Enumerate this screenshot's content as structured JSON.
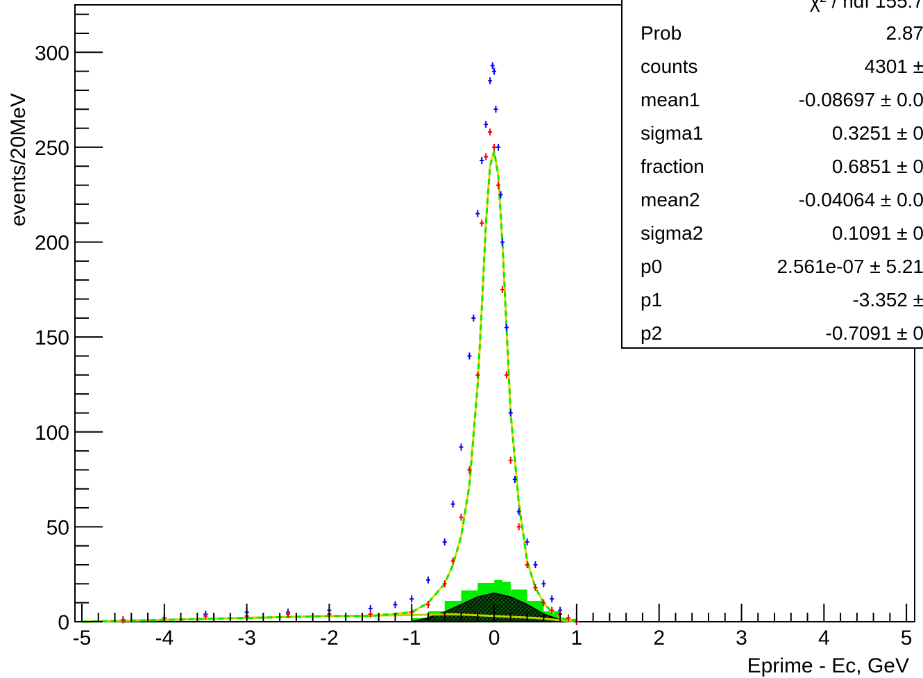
{
  "chart_data": {
    "type": "line",
    "xlabel": "Eprime - Ec, GeV",
    "ylabel": "events/20MeV",
    "xlim": [
      -5,
      5.1
    ],
    "ylim": [
      0,
      325
    ],
    "x_ticks": [
      "-5",
      "-4",
      "-3",
      "-2",
      "-1",
      "0",
      "1",
      "2",
      "3",
      "4",
      "5"
    ],
    "y_ticks": [
      "0",
      "50",
      "100",
      "150",
      "200",
      "250",
      "300"
    ],
    "x_tick_values": [
      -5,
      -4,
      -3,
      -2,
      -1,
      0,
      1,
      2,
      3,
      4,
      5
    ],
    "y_tick_values": [
      0,
      50,
      100,
      150,
      200,
      250,
      300
    ],
    "series": [
      {
        "color": "#0000ee",
        "style": "points",
        "x": [
          -4.5,
          -4.0,
          -3.5,
          -3.0,
          -2.5,
          -2.0,
          -1.5,
          -1.2,
          -1.0,
          -0.8,
          -0.6,
          -0.5,
          -0.4,
          -0.3,
          -0.25,
          -0.2,
          -0.15,
          -0.1,
          -0.05,
          -0.02,
          0.0,
          0.02,
          0.05,
          0.08,
          0.1,
          0.15,
          0.2,
          0.25,
          0.3,
          0.4,
          0.5,
          0.6,
          0.7,
          0.8,
          0.9,
          1.0
        ],
        "y": [
          1,
          2,
          4,
          5,
          5,
          6,
          7,
          9,
          12,
          22,
          42,
          62,
          92,
          140,
          160,
          215,
          243,
          262,
          285,
          293,
          290,
          270,
          250,
          225,
          200,
          155,
          110,
          75,
          58,
          42,
          30,
          20,
          12,
          6,
          2,
          0
        ]
      },
      {
        "color": "#ee0000",
        "style": "points",
        "x": [
          -4.5,
          -4.0,
          -3.5,
          -3.0,
          -2.5,
          -2.0,
          -1.5,
          -1.0,
          -0.8,
          -0.6,
          -0.5,
          -0.4,
          -0.3,
          -0.2,
          -0.15,
          -0.1,
          -0.05,
          0.0,
          0.05,
          0.1,
          0.15,
          0.2,
          0.3,
          0.4,
          0.5,
          0.6,
          0.7,
          0.8,
          0.9,
          1.0
        ],
        "y": [
          1,
          2,
          3,
          3,
          4,
          4,
          4,
          5,
          9,
          20,
          32,
          55,
          80,
          130,
          210,
          245,
          258,
          250,
          230,
          175,
          130,
          85,
          50,
          30,
          18,
          10,
          6,
          4,
          2,
          0
        ]
      },
      {
        "color": "#00ee00",
        "style": "dashed",
        "x": [
          -5.0,
          -4.0,
          -3.0,
          -2.0,
          -1.5,
          -1.0,
          -0.8,
          -0.6,
          -0.5,
          -0.4,
          -0.3,
          -0.2,
          -0.15,
          -0.1,
          -0.05,
          0.0,
          0.05,
          0.1,
          0.15,
          0.2,
          0.3,
          0.4,
          0.5,
          0.6,
          0.7,
          0.8,
          0.9,
          1.0
        ],
        "y": [
          0,
          1,
          2,
          3,
          3,
          5,
          10,
          20,
          30,
          45,
          72,
          125,
          165,
          210,
          240,
          248,
          235,
          200,
          155,
          110,
          62,
          32,
          18,
          10,
          5,
          2,
          1,
          0
        ]
      },
      {
        "color": "#ffcc00",
        "style": "line",
        "x": [
          -5.0,
          -4.0,
          -3.0,
          -2.0,
          -1.5,
          -1.0,
          -0.8,
          -0.6,
          -0.5,
          -0.4,
          -0.3,
          -0.2,
          -0.15,
          -0.1,
          -0.05,
          0.0,
          0.05,
          0.1,
          0.15,
          0.2,
          0.3,
          0.4,
          0.5,
          0.6,
          0.7,
          0.8,
          0.9,
          1.0
        ],
        "y": [
          0,
          1,
          2,
          3,
          3,
          5,
          10,
          20,
          30,
          45,
          72,
          125,
          165,
          210,
          240,
          248,
          235,
          200,
          155,
          110,
          62,
          32,
          18,
          10,
          5,
          2,
          1,
          0
        ]
      },
      {
        "color": "#00ee00",
        "style": "filled-histogram",
        "x": [
          -1.0,
          -0.8,
          -0.6,
          -0.4,
          -0.2,
          0.0,
          0.1,
          0.2,
          0.4,
          0.6,
          0.8,
          1.0
        ],
        "y": [
          1,
          3,
          8,
          14,
          19,
          22,
          22,
          20,
          14,
          8,
          3,
          0
        ]
      },
      {
        "color": "#000000",
        "style": "hatched-area",
        "x": [
          -1.0,
          -0.8,
          -0.6,
          -0.4,
          -0.2,
          0.0,
          0.2,
          0.4,
          0.6,
          0.8,
          1.0
        ],
        "y": [
          0,
          2,
          5,
          9,
          13,
          15,
          13,
          9,
          4,
          1,
          0
        ]
      },
      {
        "color": "#cccc00",
        "style": "line",
        "x": [
          -5.0,
          -4.0,
          -3.0,
          -2.5,
          -2.0,
          -1.5,
          -1.0,
          -0.5,
          0.0,
          0.5,
          1.0
        ],
        "y": [
          0,
          1,
          2,
          2.5,
          3,
          3.2,
          3.5,
          4,
          3,
          2,
          0
        ]
      }
    ],
    "grid": false,
    "legend": "none"
  },
  "stats": {
    "top_row_partial": "χ² / ndf   155.7",
    "rows": [
      {
        "name": "Prob",
        "value": "2.87"
      },
      {
        "name": "counts",
        "value": "4301 ±"
      },
      {
        "name": "mean1",
        "value": "-0.08697 ± 0.0"
      },
      {
        "name": "sigma1",
        "value": "0.3251 ± 0"
      },
      {
        "name": "fraction",
        "value": "0.6851 ± 0"
      },
      {
        "name": "mean2",
        "value": "-0.04064 ± 0.0"
      },
      {
        "name": "sigma2",
        "value": "0.1091 ± 0"
      },
      {
        "name": "p0",
        "value": "2.561e-07 ± 5.21"
      },
      {
        "name": "p1",
        "value": "-3.352 ±"
      },
      {
        "name": "p2",
        "value": "-0.7091 ± 0"
      }
    ]
  }
}
